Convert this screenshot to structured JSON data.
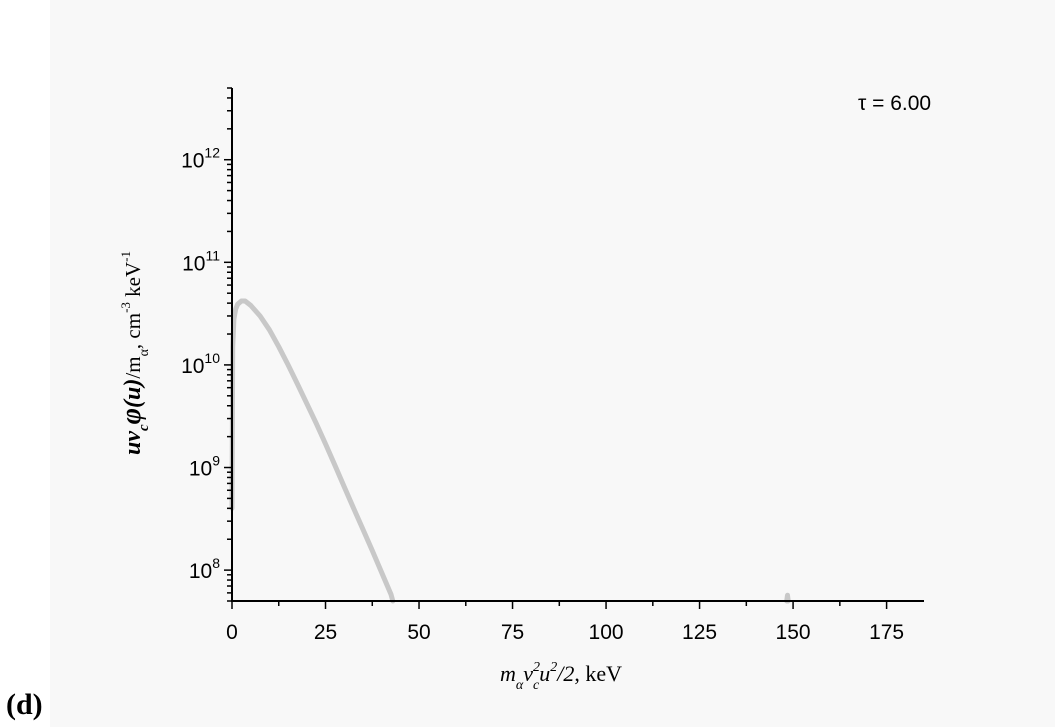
{
  "panel_label": "(d)",
  "annotation": "τ = 6.00",
  "chart_data": {
    "type": "line",
    "xlabel": "m_α v_c^2 u^2/2, keV",
    "ylabel": "u v_c φ(u)/m_α, cm^-3 keV^-1",
    "xlim": [
      0,
      185
    ],
    "ylim": [
      50000000,
      5000000000000
    ],
    "y_scale": "log",
    "x_ticks": [
      0,
      25,
      50,
      75,
      100,
      125,
      150,
      175
    ],
    "y_ticks": [
      {
        "value": 100000000,
        "mantissa": "10",
        "exp": "8"
      },
      {
        "value": 1000000000,
        "mantissa": "10",
        "exp": "9"
      },
      {
        "value": 10000000000,
        "mantissa": "10",
        "exp": "10"
      },
      {
        "value": 100000000000,
        "mantissa": "10",
        "exp": "11"
      },
      {
        "value": 1000000000000,
        "mantissa": "10",
        "exp": "12"
      }
    ],
    "line_color": "#c8c8c8",
    "series": [
      {
        "x": [
          0.0,
          0.2,
          0.5,
          1.0,
          1.5,
          2.5,
          3.5,
          5,
          7.5,
          10,
          12.5,
          15,
          17.5,
          20,
          22.5,
          25,
          27.5,
          30,
          32.5,
          35,
          37.5,
          40,
          42.5,
          43
        ],
        "y": [
          400000000,
          15000000000,
          28000000000,
          35000000000,
          39000000000,
          42000000000,
          42000000000,
          38000000000,
          30000000000,
          22000000000,
          15000000000,
          10000000000,
          6500000000,
          4200000000,
          2700000000,
          1700000000,
          1050000000,
          650000000,
          400000000,
          250000000,
          155000000,
          95000000,
          58000000,
          50000000
        ]
      },
      {
        "x": [
          148.3,
          148.5,
          148.7
        ],
        "y": [
          50000000,
          57000000,
          50000000
        ]
      }
    ]
  }
}
